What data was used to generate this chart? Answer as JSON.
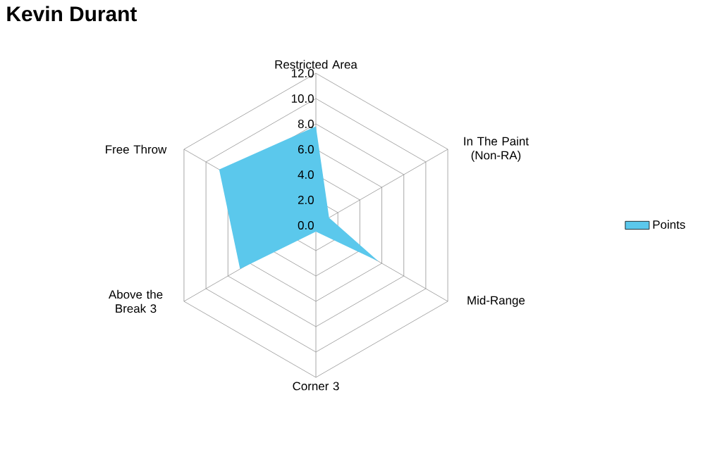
{
  "chart_data": {
    "type": "radar",
    "title": "Kevin Durant",
    "categories": [
      "Restricted Area",
      "In The Paint (Non-RA)",
      "Mid-Range",
      "Corner 3",
      "Above the Break 3",
      "Free Throw"
    ],
    "series": [
      {
        "name": "Points",
        "color": "#5bc8ec",
        "values": [
          7.8,
          1.2,
          5.7,
          0.5,
          6.9,
          8.8
        ]
      }
    ],
    "ylim": [
      0,
      12
    ],
    "yticks": [
      {
        "value": 0,
        "label": "0.0"
      },
      {
        "value": 2,
        "label": "2.0"
      },
      {
        "value": 4,
        "label": "4.0"
      },
      {
        "value": 6,
        "label": "6.0"
      },
      {
        "value": 8,
        "label": "8.0"
      },
      {
        "value": 10,
        "label": "10.0"
      },
      {
        "value": 12,
        "label": "12.0"
      }
    ],
    "grid": true,
    "legend": "right"
  }
}
